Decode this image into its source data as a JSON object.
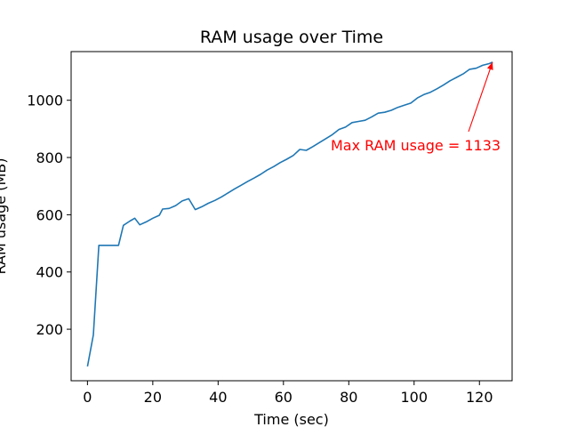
{
  "chart_data": {
    "type": "line",
    "title": "RAM usage over Time",
    "xlabel": "Time (sec)",
    "ylabel": "RAM usage (MB)",
    "xlim": [
      -5,
      130
    ],
    "ylim": [
      20,
      1170
    ],
    "xticks": [
      0,
      20,
      40,
      60,
      80,
      100,
      120
    ],
    "yticks": [
      200,
      400,
      600,
      800,
      1000
    ],
    "grid": false,
    "line_color": "#1f77b4",
    "annotation": {
      "text": "Max RAM usage = 1133",
      "color": "#ff0000",
      "point": {
        "x": 124,
        "y": 1133
      }
    },
    "x": [
      0,
      1.8,
      3.5,
      5.5,
      7.5,
      9.5,
      11,
      13,
      14.5,
      16,
      18,
      20,
      22,
      23,
      25,
      27,
      29,
      31,
      33,
      35,
      37,
      39,
      41,
      43,
      45,
      47,
      49,
      51,
      53,
      55,
      57,
      59,
      61,
      63,
      65,
      67,
      69,
      71,
      73,
      75,
      77,
      79,
      81,
      83,
      85,
      87,
      89,
      91,
      93,
      95,
      97,
      99,
      101,
      103,
      105,
      107,
      109,
      111,
      113,
      115,
      117,
      119,
      121,
      123,
      124
    ],
    "y": [
      70,
      180,
      493,
      493,
      493,
      493,
      563,
      578,
      588,
      565,
      575,
      588,
      598,
      620,
      622,
      632,
      648,
      656,
      618,
      628,
      640,
      650,
      662,
      676,
      690,
      703,
      716,
      728,
      741,
      756,
      768,
      782,
      794,
      807,
      828,
      825,
      838,
      852,
      866,
      880,
      898,
      906,
      922,
      926,
      930,
      942,
      955,
      958,
      965,
      975,
      983,
      990,
      1008,
      1020,
      1028,
      1040,
      1053,
      1068,
      1080,
      1092,
      1108,
      1112,
      1122,
      1128,
      1133
    ]
  }
}
